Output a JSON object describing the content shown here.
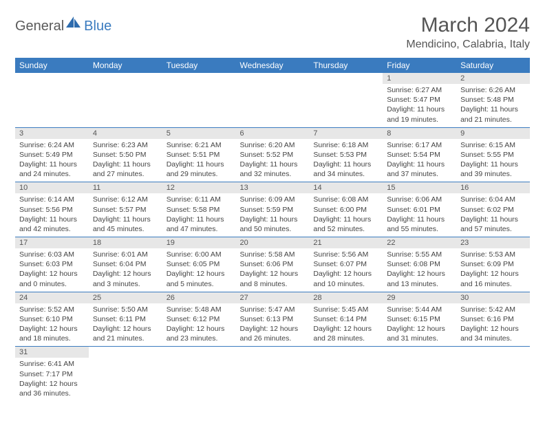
{
  "logo": {
    "part1": "General",
    "part2": "Blue"
  },
  "title": "March 2024",
  "location": "Mendicino, Calabria, Italy",
  "colors": {
    "header_bg": "#3a7bbf",
    "daynum_bg": "#e7e7e7",
    "text": "#555555"
  },
  "weekdays": [
    "Sunday",
    "Monday",
    "Tuesday",
    "Wednesday",
    "Thursday",
    "Friday",
    "Saturday"
  ],
  "weeks": [
    [
      null,
      null,
      null,
      null,
      null,
      {
        "n": "1",
        "sr": "Sunrise: 6:27 AM",
        "ss": "Sunset: 5:47 PM",
        "d1": "Daylight: 11 hours",
        "d2": "and 19 minutes."
      },
      {
        "n": "2",
        "sr": "Sunrise: 6:26 AM",
        "ss": "Sunset: 5:48 PM",
        "d1": "Daylight: 11 hours",
        "d2": "and 21 minutes."
      }
    ],
    [
      {
        "n": "3",
        "sr": "Sunrise: 6:24 AM",
        "ss": "Sunset: 5:49 PM",
        "d1": "Daylight: 11 hours",
        "d2": "and 24 minutes."
      },
      {
        "n": "4",
        "sr": "Sunrise: 6:23 AM",
        "ss": "Sunset: 5:50 PM",
        "d1": "Daylight: 11 hours",
        "d2": "and 27 minutes."
      },
      {
        "n": "5",
        "sr": "Sunrise: 6:21 AM",
        "ss": "Sunset: 5:51 PM",
        "d1": "Daylight: 11 hours",
        "d2": "and 29 minutes."
      },
      {
        "n": "6",
        "sr": "Sunrise: 6:20 AM",
        "ss": "Sunset: 5:52 PM",
        "d1": "Daylight: 11 hours",
        "d2": "and 32 minutes."
      },
      {
        "n": "7",
        "sr": "Sunrise: 6:18 AM",
        "ss": "Sunset: 5:53 PM",
        "d1": "Daylight: 11 hours",
        "d2": "and 34 minutes."
      },
      {
        "n": "8",
        "sr": "Sunrise: 6:17 AM",
        "ss": "Sunset: 5:54 PM",
        "d1": "Daylight: 11 hours",
        "d2": "and 37 minutes."
      },
      {
        "n": "9",
        "sr": "Sunrise: 6:15 AM",
        "ss": "Sunset: 5:55 PM",
        "d1": "Daylight: 11 hours",
        "d2": "and 39 minutes."
      }
    ],
    [
      {
        "n": "10",
        "sr": "Sunrise: 6:14 AM",
        "ss": "Sunset: 5:56 PM",
        "d1": "Daylight: 11 hours",
        "d2": "and 42 minutes."
      },
      {
        "n": "11",
        "sr": "Sunrise: 6:12 AM",
        "ss": "Sunset: 5:57 PM",
        "d1": "Daylight: 11 hours",
        "d2": "and 45 minutes."
      },
      {
        "n": "12",
        "sr": "Sunrise: 6:11 AM",
        "ss": "Sunset: 5:58 PM",
        "d1": "Daylight: 11 hours",
        "d2": "and 47 minutes."
      },
      {
        "n": "13",
        "sr": "Sunrise: 6:09 AM",
        "ss": "Sunset: 5:59 PM",
        "d1": "Daylight: 11 hours",
        "d2": "and 50 minutes."
      },
      {
        "n": "14",
        "sr": "Sunrise: 6:08 AM",
        "ss": "Sunset: 6:00 PM",
        "d1": "Daylight: 11 hours",
        "d2": "and 52 minutes."
      },
      {
        "n": "15",
        "sr": "Sunrise: 6:06 AM",
        "ss": "Sunset: 6:01 PM",
        "d1": "Daylight: 11 hours",
        "d2": "and 55 minutes."
      },
      {
        "n": "16",
        "sr": "Sunrise: 6:04 AM",
        "ss": "Sunset: 6:02 PM",
        "d1": "Daylight: 11 hours",
        "d2": "and 57 minutes."
      }
    ],
    [
      {
        "n": "17",
        "sr": "Sunrise: 6:03 AM",
        "ss": "Sunset: 6:03 PM",
        "d1": "Daylight: 12 hours",
        "d2": "and 0 minutes."
      },
      {
        "n": "18",
        "sr": "Sunrise: 6:01 AM",
        "ss": "Sunset: 6:04 PM",
        "d1": "Daylight: 12 hours",
        "d2": "and 3 minutes."
      },
      {
        "n": "19",
        "sr": "Sunrise: 6:00 AM",
        "ss": "Sunset: 6:05 PM",
        "d1": "Daylight: 12 hours",
        "d2": "and 5 minutes."
      },
      {
        "n": "20",
        "sr": "Sunrise: 5:58 AM",
        "ss": "Sunset: 6:06 PM",
        "d1": "Daylight: 12 hours",
        "d2": "and 8 minutes."
      },
      {
        "n": "21",
        "sr": "Sunrise: 5:56 AM",
        "ss": "Sunset: 6:07 PM",
        "d1": "Daylight: 12 hours",
        "d2": "and 10 minutes."
      },
      {
        "n": "22",
        "sr": "Sunrise: 5:55 AM",
        "ss": "Sunset: 6:08 PM",
        "d1": "Daylight: 12 hours",
        "d2": "and 13 minutes."
      },
      {
        "n": "23",
        "sr": "Sunrise: 5:53 AM",
        "ss": "Sunset: 6:09 PM",
        "d1": "Daylight: 12 hours",
        "d2": "and 16 minutes."
      }
    ],
    [
      {
        "n": "24",
        "sr": "Sunrise: 5:52 AM",
        "ss": "Sunset: 6:10 PM",
        "d1": "Daylight: 12 hours",
        "d2": "and 18 minutes."
      },
      {
        "n": "25",
        "sr": "Sunrise: 5:50 AM",
        "ss": "Sunset: 6:11 PM",
        "d1": "Daylight: 12 hours",
        "d2": "and 21 minutes."
      },
      {
        "n": "26",
        "sr": "Sunrise: 5:48 AM",
        "ss": "Sunset: 6:12 PM",
        "d1": "Daylight: 12 hours",
        "d2": "and 23 minutes."
      },
      {
        "n": "27",
        "sr": "Sunrise: 5:47 AM",
        "ss": "Sunset: 6:13 PM",
        "d1": "Daylight: 12 hours",
        "d2": "and 26 minutes."
      },
      {
        "n": "28",
        "sr": "Sunrise: 5:45 AM",
        "ss": "Sunset: 6:14 PM",
        "d1": "Daylight: 12 hours",
        "d2": "and 28 minutes."
      },
      {
        "n": "29",
        "sr": "Sunrise: 5:44 AM",
        "ss": "Sunset: 6:15 PM",
        "d1": "Daylight: 12 hours",
        "d2": "and 31 minutes."
      },
      {
        "n": "30",
        "sr": "Sunrise: 5:42 AM",
        "ss": "Sunset: 6:16 PM",
        "d1": "Daylight: 12 hours",
        "d2": "and 34 minutes."
      }
    ],
    [
      {
        "n": "31",
        "sr": "Sunrise: 6:41 AM",
        "ss": "Sunset: 7:17 PM",
        "d1": "Daylight: 12 hours",
        "d2": "and 36 minutes."
      },
      null,
      null,
      null,
      null,
      null,
      null
    ]
  ]
}
